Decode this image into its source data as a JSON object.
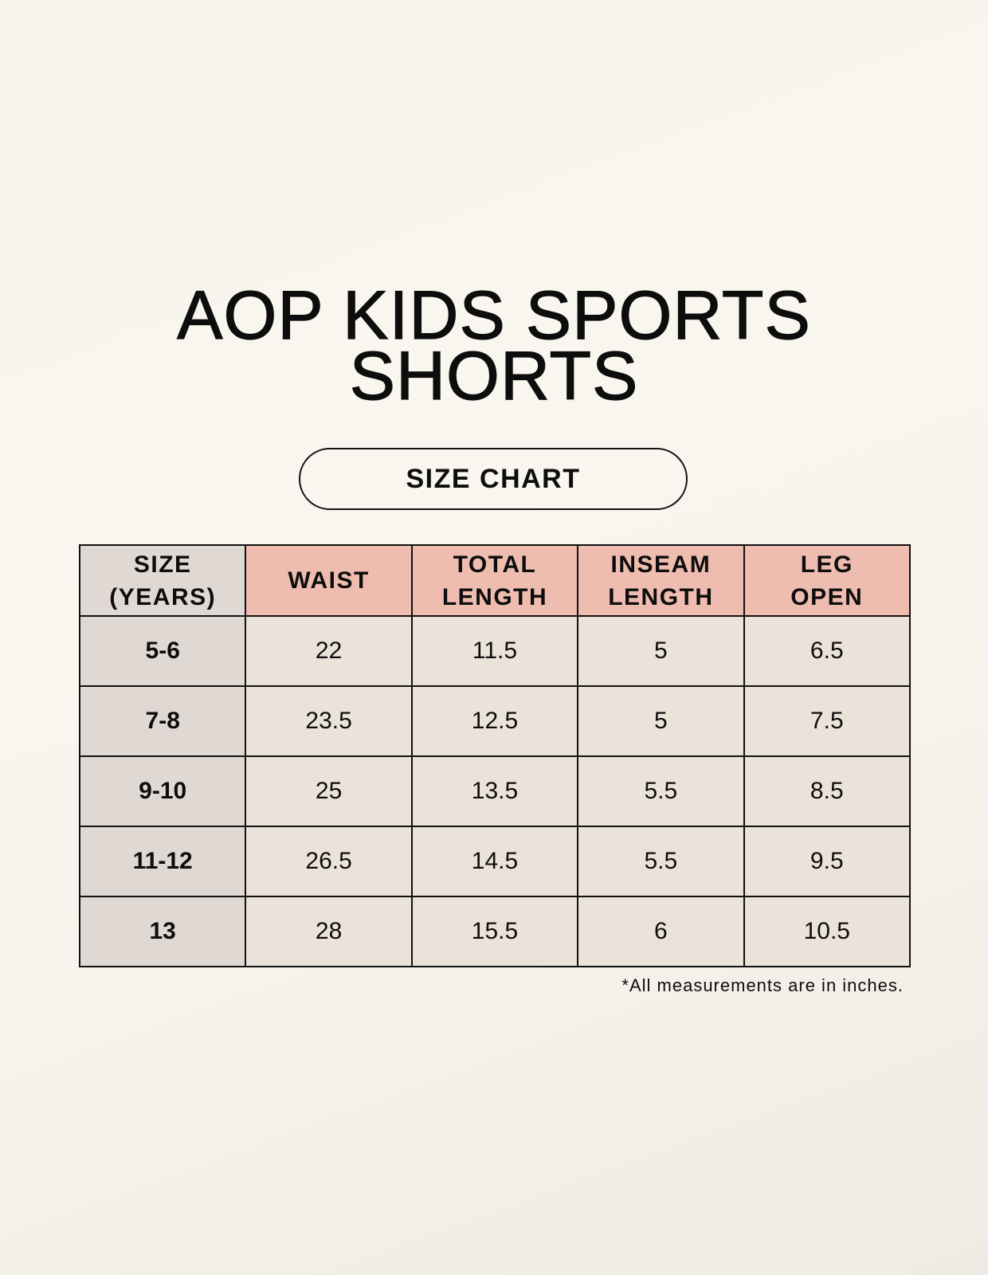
{
  "title": {
    "line1": "AOP KIDS SPORTS",
    "line2": "SHORTS"
  },
  "badge": "SIZE CHART",
  "table": {
    "headers": [
      "SIZE (YEARS)",
      "WAIST",
      "TOTAL LENGTH",
      "INSEAM LENGTH",
      "LEG OPEN"
    ],
    "rows": [
      [
        "5-6",
        "22",
        "11.5",
        "5",
        "6.5"
      ],
      [
        "7-8",
        "23.5",
        "12.5",
        "5",
        "7.5"
      ],
      [
        "9-10",
        "25",
        "13.5",
        "5.5",
        "8.5"
      ],
      [
        "11-12",
        "26.5",
        "14.5",
        "5.5",
        "9.5"
      ],
      [
        "13",
        "28",
        "15.5",
        "6",
        "10.5"
      ]
    ]
  },
  "footnote": "*All measurements are in inches.",
  "colors": {
    "header_accent": "#efbdb0",
    "size_column": "#e0d8d3",
    "cell": "#ebe3d9"
  }
}
